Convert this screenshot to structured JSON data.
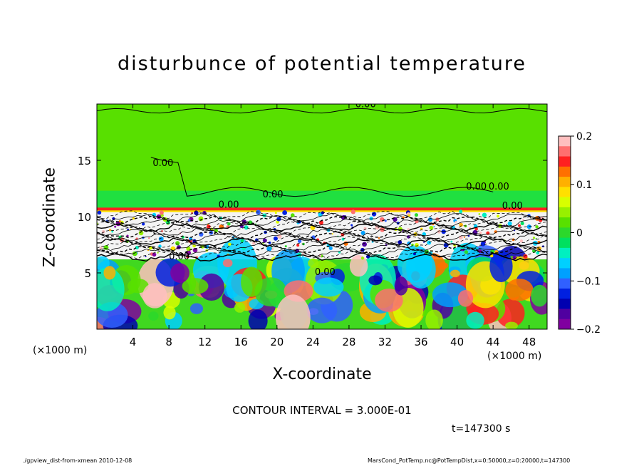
{
  "chart_data": {
    "type": "heatmap",
    "title": "disturbunce of potential temperature",
    "xlabel": "X-coordinate",
    "ylabel": "Z-coordinate",
    "x_unit_label": "(×1000 m)",
    "x_ticks": [
      4,
      8,
      12,
      16,
      20,
      24,
      28,
      32,
      36,
      40,
      44,
      48
    ],
    "y_ticks": [
      5,
      10,
      15
    ],
    "xlim": [
      0,
      50
    ],
    "ylim": [
      0,
      20
    ],
    "colorbar": {
      "ticks": [
        "0.2",
        "0.1",
        "0",
        "−0.1",
        "−0.2"
      ],
      "range": [
        -0.2,
        0.2
      ],
      "colors": [
        "#ffbfbf",
        "#ff6f6f",
        "#ff2020",
        "#ff7000",
        "#ffb000",
        "#ffe000",
        "#d8ff00",
        "#98f000",
        "#58e000",
        "#2cd82c",
        "#00e060",
        "#00f0c0",
        "#00d0ff",
        "#00a0ff",
        "#3060ff",
        "#0020e0",
        "#0000b0",
        "#5000a0",
        "#8000a0"
      ]
    },
    "contour_labels": [
      "0.00",
      "0.00",
      "0.00",
      "0.00",
      "0.00",
      "0.00",
      "0.00",
      "0.00",
      "0.00"
    ],
    "contour_interval_text": "CONTOUR INTERVAL = 3.000E-01",
    "time_text": "t=147300 s"
  },
  "footer": {
    "left": "./gpview_dist-from-xmean 2010-12-08",
    "right": "MarsCond_PotTemp.nc@PotTempDist,x=0:50000,z=0:20000,t=147300"
  },
  "colors": {
    "upper_green": "#58e000",
    "band_red": "#ff2020",
    "contour": "#000000"
  }
}
